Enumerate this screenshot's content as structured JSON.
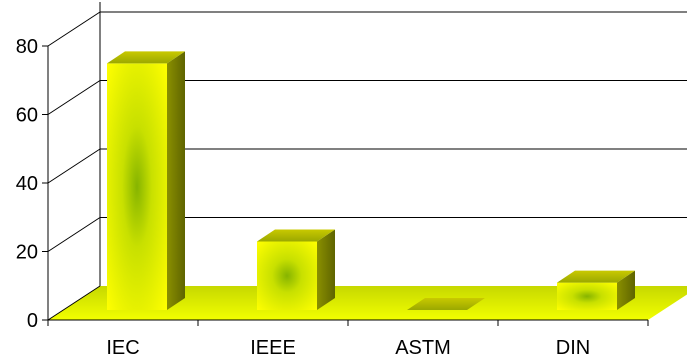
{
  "chart_data": {
    "type": "bar",
    "title": "",
    "xlabel": "",
    "ylabel": "",
    "categories": [
      "IEC",
      "IEEE",
      "ASTM",
      "DIN"
    ],
    "values": [
      72,
      20,
      0,
      8
    ],
    "ylim": [
      0,
      80
    ],
    "yticks": [
      "0",
      "20",
      "40",
      "60",
      "80"
    ],
    "grid": true,
    "legend": "none",
    "colors": {
      "bar_light": "#ffff00",
      "bar_mid": "#b8cc00",
      "bar_dark": "#6b7000",
      "bar_center": "#86b400",
      "floor": "#e0f000",
      "floor_edge": "#c8d800",
      "grid": "#000000"
    }
  }
}
